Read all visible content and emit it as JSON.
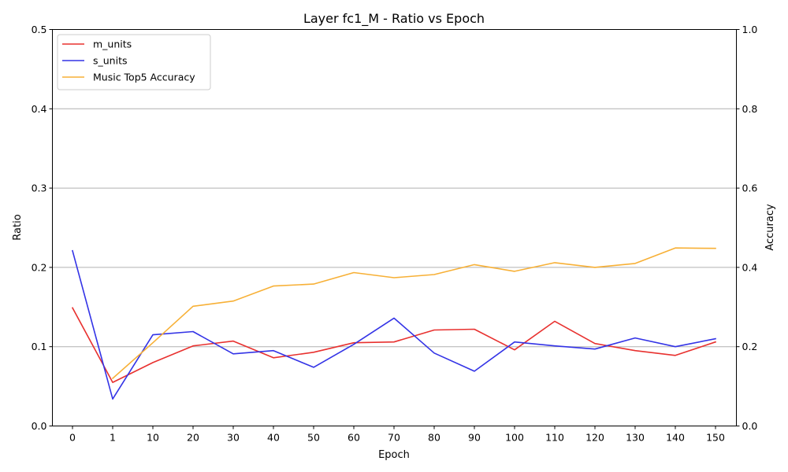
{
  "chart_data": {
    "type": "line",
    "title": "Layer fc1_M - Ratio vs Epoch",
    "xlabel": "Epoch",
    "ylabel": "Ratio",
    "y2label": "Accuracy",
    "categories": [
      "0",
      "1",
      "10",
      "20",
      "30",
      "40",
      "50",
      "60",
      "70",
      "80",
      "90",
      "100",
      "110",
      "120",
      "130",
      "140",
      "150"
    ],
    "ylim": [
      0,
      0.5
    ],
    "y2lim": [
      0,
      1.0
    ],
    "yticks": [
      "0.0",
      "0.1",
      "0.2",
      "0.3",
      "0.4",
      "0.5"
    ],
    "y2ticks": [
      "0.0",
      "0.2",
      "0.4",
      "0.6",
      "0.8",
      "1.0"
    ],
    "grid": "horizontal",
    "legend_position": "top-left",
    "series": [
      {
        "name": "m_units",
        "axis": "left",
        "color": "#e8312f",
        "values": [
          0.149,
          0.055,
          0.08,
          0.101,
          0.107,
          0.086,
          0.093,
          0.105,
          0.106,
          0.121,
          0.122,
          0.096,
          0.132,
          0.104,
          0.095,
          0.089,
          0.106
        ]
      },
      {
        "name": "s_units",
        "axis": "left",
        "color": "#3333e6",
        "values": [
          0.221,
          0.034,
          0.115,
          0.119,
          0.091,
          0.095,
          0.074,
          0.103,
          0.136,
          0.092,
          0.069,
          0.106,
          0.101,
          0.097,
          0.111,
          0.1,
          0.11
        ]
      },
      {
        "name": "Music Top5 Accuracy",
        "axis": "right",
        "color": "#f7b036",
        "values": [
          null,
          0.12,
          0.21,
          0.302,
          0.315,
          0.353,
          0.358,
          0.387,
          0.374,
          0.382,
          0.407,
          0.39,
          0.412,
          0.4,
          0.41,
          0.449,
          0.448
        ]
      }
    ]
  }
}
